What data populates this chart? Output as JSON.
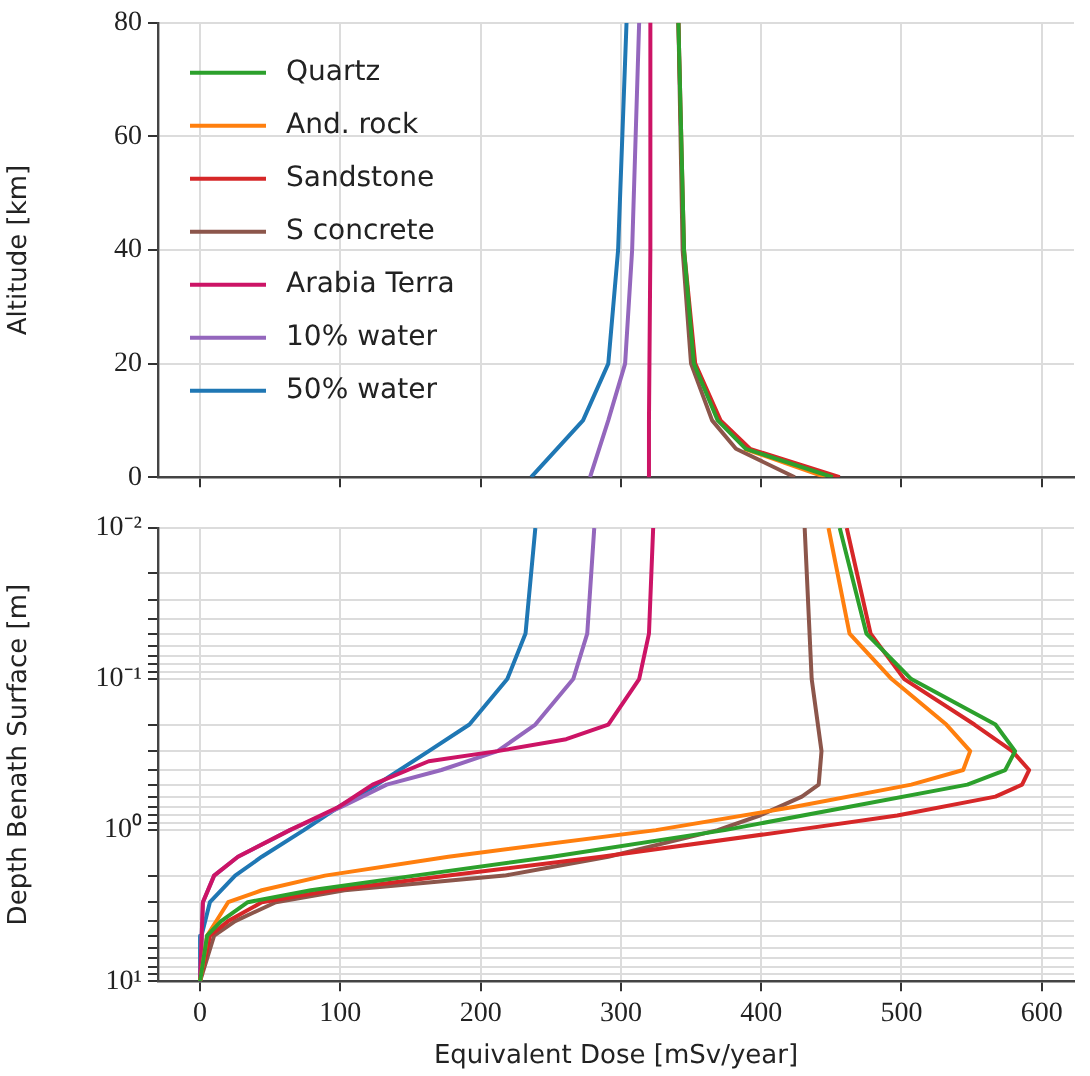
{
  "chart_data": [
    {
      "type": "line",
      "ylabel": "Altitude [km]",
      "xlim": [
        -30,
        623
      ],
      "ylim": [
        0,
        80
      ],
      "xticks": [
        {
          "value": 0,
          "label": null
        },
        {
          "value": 100,
          "label": null
        },
        {
          "value": 200,
          "label": null
        },
        {
          "value": 300,
          "label": null
        },
        {
          "value": 400,
          "label": null
        },
        {
          "value": 500,
          "label": null
        },
        {
          "value": 600,
          "label": null
        }
      ],
      "yticks": [
        0,
        20,
        40,
        60,
        80
      ],
      "tick_labels": "y",
      "grid": true,
      "legend": "top left",
      "line_style": "solid",
      "series": [
        {
          "name": "Quartz",
          "color": "#2ca02c",
          "x": [
            341,
            345,
            352,
            369,
            389,
            451
          ],
          "values": [
            80,
            40,
            20,
            10,
            5,
            0
          ]
        },
        {
          "name": "And. rock",
          "color": "#ff7f0e",
          "x": [
            388,
            446
          ],
          "values": [
            5,
            0
          ]
        },
        {
          "name": "Sandstone",
          "color": "#d62728",
          "x": [
            341,
            345,
            353,
            371,
            392,
            456
          ],
          "values": [
            80,
            40,
            20,
            10,
            5,
            0
          ]
        },
        {
          "name": "S concrete",
          "color": "#8c564b",
          "x": [
            341,
            344,
            350,
            365,
            382,
            424
          ],
          "values": [
            80,
            40,
            20,
            10,
            5,
            0
          ]
        },
        {
          "name": "Arabia Terra",
          "color": "#cc1466",
          "x": [
            321,
            321,
            320,
            320
          ],
          "values": [
            80,
            40,
            10,
            0
          ]
        },
        {
          "name": "10% water",
          "color": "#9467bd",
          "x": [
            313,
            308,
            303,
            291,
            278
          ],
          "values": [
            80,
            40,
            20,
            10,
            0
          ]
        },
        {
          "name": "50% water",
          "color": "#1f77b4",
          "x": [
            304,
            298,
            291,
            273,
            236
          ],
          "values": [
            80,
            40,
            20,
            10,
            0
          ]
        }
      ]
    },
    {
      "type": "line",
      "xlabel": "Equivalent Dose [mSv/year]",
      "ylabel": "Depth Benath Surface [m]",
      "log": "y",
      "xlim": [
        -30,
        623
      ],
      "ylim": [
        10,
        0.01
      ],
      "xticks": [
        0,
        100,
        200,
        300,
        400,
        500,
        600
      ],
      "yticks": [
        {
          "value": 0.01,
          "label": "10⁻²"
        },
        {
          "value": 0.02,
          "label": null
        },
        {
          "value": 0.03,
          "label": null
        },
        {
          "value": 0.04,
          "label": null
        },
        {
          "value": 0.05,
          "label": null
        },
        {
          "value": 0.06,
          "label": null
        },
        {
          "value": 0.07,
          "label": null
        },
        {
          "value": 0.08,
          "label": null
        },
        {
          "value": 0.09,
          "label": null
        },
        {
          "value": 0.1,
          "label": "10⁻¹"
        },
        {
          "value": 0.2,
          "label": null
        },
        {
          "value": 0.3,
          "label": null
        },
        {
          "value": 0.4,
          "label": null
        },
        {
          "value": 0.5,
          "label": null
        },
        {
          "value": 0.6,
          "label": null
        },
        {
          "value": 0.7,
          "label": null
        },
        {
          "value": 0.8,
          "label": null
        },
        {
          "value": 0.9,
          "label": null
        },
        {
          "value": 1,
          "label": "10⁰"
        },
        {
          "value": 2,
          "label": null
        },
        {
          "value": 3,
          "label": null
        },
        {
          "value": 4,
          "label": null
        },
        {
          "value": 5,
          "label": null
        },
        {
          "value": 6,
          "label": null
        },
        {
          "value": 7,
          "label": null
        },
        {
          "value": 8,
          "label": null
        },
        {
          "value": 9,
          "label": null
        },
        {
          "value": 10,
          "label": "10¹"
        }
      ],
      "grid": true,
      "line_style": "solid",
      "series": [
        {
          "color": "#2ca02c",
          "x": [
            456,
            475,
            507,
            567,
            581,
            574,
            547,
            463,
            374,
            251,
            153,
            79,
            34,
            15,
            5,
            0
          ],
          "values": [
            0.01,
            0.05,
            0.1,
            0.2,
            0.3,
            0.4,
            0.5,
            0.7,
            1,
            1.5,
            2,
            2.5,
            3,
            4,
            5,
            10
          ]
        },
        {
          "color": "#ff7f0e",
          "x": [
            448,
            463,
            493,
            532,
            549,
            544,
            507,
            424,
            325,
            177,
            89,
            44,
            20,
            5,
            0
          ],
          "values": [
            0.01,
            0.05,
            0.1,
            0.2,
            0.3,
            0.4,
            0.5,
            0.7,
            1,
            1.5,
            2,
            2.5,
            3,
            5,
            10
          ]
        },
        {
          "color": "#d62728",
          "x": [
            461,
            478,
            502,
            552,
            579,
            591,
            586,
            567,
            497,
            424,
            286,
            177,
            94,
            44,
            20,
            7,
            0
          ],
          "values": [
            0.01,
            0.05,
            0.1,
            0.2,
            0.3,
            0.4,
            0.5,
            0.6,
            0.8,
            1,
            1.5,
            2,
            2.5,
            3,
            4,
            5,
            10
          ]
        },
        {
          "color": "#8c564b",
          "x": [
            431,
            436,
            443,
            441,
            429,
            399,
            369,
            291,
            217,
            103,
            54,
            25,
            10,
            0
          ],
          "values": [
            0.01,
            0.1,
            0.3,
            0.5,
            0.6,
            0.8,
            1,
            1.5,
            2,
            2.5,
            3,
            4,
            5,
            10
          ]
        },
        {
          "color": "#cc1466",
          "x": [
            323,
            320,
            313,
            291,
            261,
            212,
            163,
            123,
            99,
            64,
            27,
            10,
            2,
            0
          ],
          "values": [
            0.01,
            0.05,
            0.1,
            0.2,
            0.25,
            0.3,
            0.35,
            0.5,
            0.7,
            1,
            1.5,
            2,
            3,
            10
          ]
        },
        {
          "color": "#9467bd",
          "x": [
            281,
            276,
            266,
            239,
            212,
            172,
            133,
            101,
            64,
            27,
            10,
            2,
            0
          ],
          "values": [
            0.01,
            0.05,
            0.1,
            0.2,
            0.3,
            0.4,
            0.5,
            0.7,
            1,
            1.5,
            2,
            3,
            10
          ]
        },
        {
          "color": "#1f77b4",
          "x": [
            239,
            232,
            219,
            192,
            163,
            126,
            99,
            74,
            44,
            25,
            7,
            1,
            0
          ],
          "values": [
            0.01,
            0.05,
            0.1,
            0.2,
            0.3,
            0.5,
            0.7,
            1,
            1.5,
            2,
            3,
            5,
            10
          ]
        }
      ]
    }
  ]
}
